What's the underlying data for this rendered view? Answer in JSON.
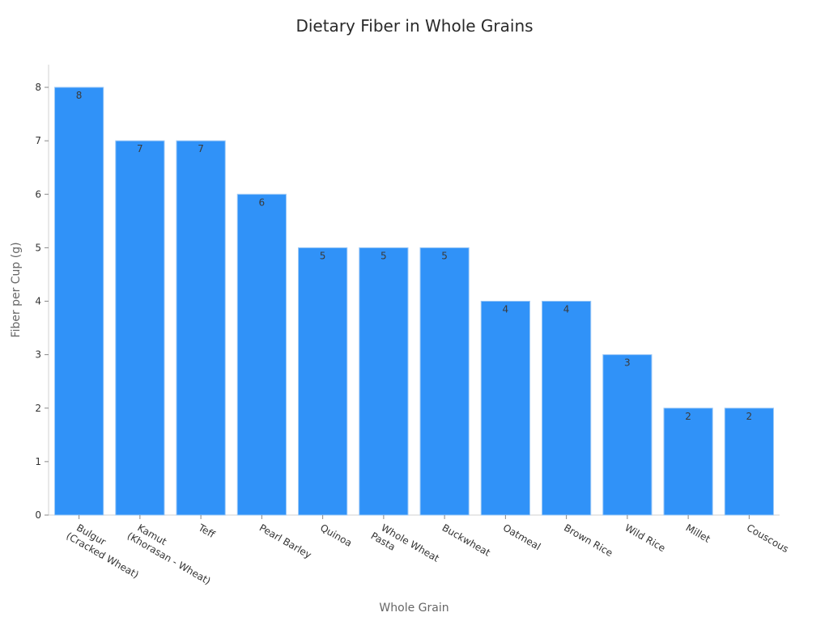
{
  "chart_data": {
    "type": "bar",
    "title": "Dietary Fiber in Whole Grains",
    "xlabel": "Whole Grain",
    "ylabel": "Fiber per Cup (g)",
    "categories": [
      "Bulgur\n(Cracked Wheat)",
      "Kamut\n(Khorasan - Wheat)",
      "Teff",
      "Pearl Barley",
      "Quinoa",
      "Whole Wheat\nPasta",
      "Buckwheat",
      "Oatmeal",
      "Brown Rice",
      "Wild Rice",
      "Millet",
      "Couscous"
    ],
    "values": [
      8,
      7,
      7,
      6,
      5,
      5,
      5,
      4,
      4,
      3,
      2,
      2
    ],
    "data_labels": true,
    "ylim": [
      0,
      8.4
    ],
    "yticks": [
      0,
      1,
      2,
      3,
      4,
      5,
      6,
      7,
      8
    ],
    "grid": false,
    "legend": null,
    "bar_color": "#3092f8",
    "x_tick_rotation": 30
  }
}
